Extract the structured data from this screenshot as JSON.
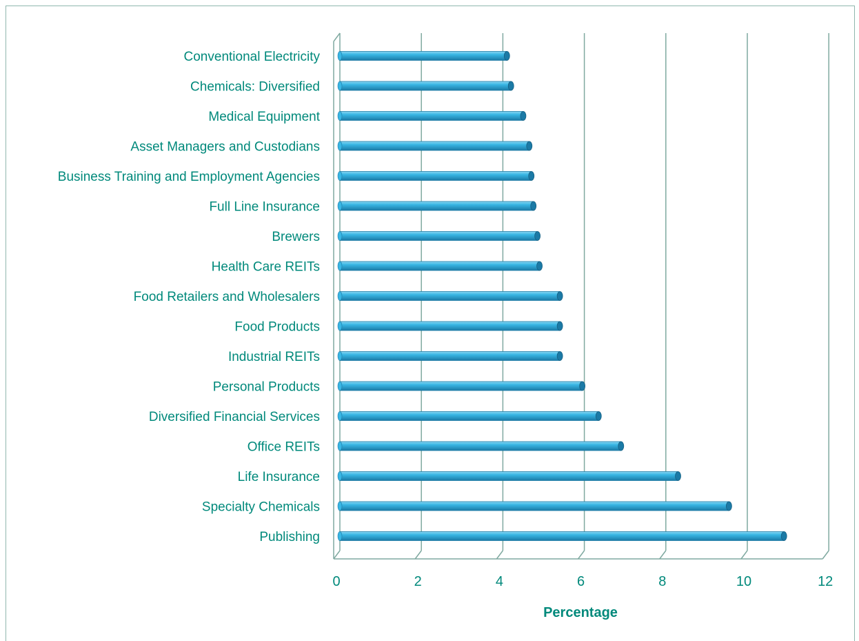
{
  "chart_data": {
    "type": "bar",
    "orientation": "horizontal",
    "title": "",
    "xlabel": "Percentage",
    "ylabel": "",
    "xlim": [
      0,
      12
    ],
    "xticks": [
      0,
      2,
      4,
      6,
      8,
      10,
      12
    ],
    "grid": true,
    "legend": "none",
    "categories": [
      "Conventional Electricity",
      "Chemicals: Diversified",
      "Medical Equipment",
      "Asset Managers and Custodians",
      "Business Training and Employment Agencies",
      "Full Line Insurance",
      "Brewers",
      "Health Care REITs",
      "Food Retailers and Wholesalers",
      "Food Products",
      "Industrial REITs",
      "Personal Products",
      "Diversified Financial Services",
      "Office REITs",
      "Life Insurance",
      "Specialty Chemicals",
      "Publishing"
    ],
    "values": [
      4.1,
      4.2,
      4.5,
      4.65,
      4.7,
      4.75,
      4.85,
      4.9,
      5.4,
      5.4,
      5.4,
      5.95,
      6.35,
      6.9,
      8.3,
      9.55,
      10.9
    ],
    "colors": {
      "bar": "#38b6e4",
      "bar_dark": "#1b7aa6",
      "bar_light": "#8ad6f2",
      "grid": "#7fa9a0",
      "text": "#00897b",
      "frame": "#8fb6ad"
    }
  }
}
